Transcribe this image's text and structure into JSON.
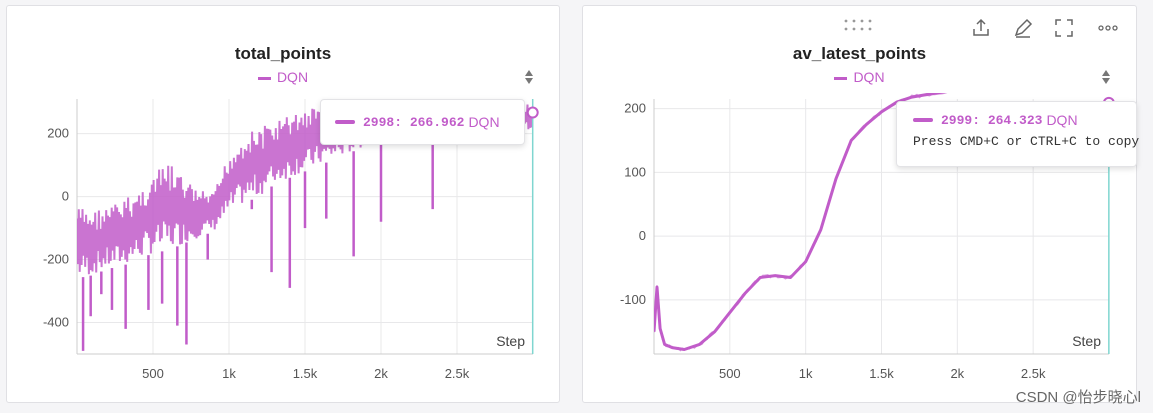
{
  "panels": [
    {
      "title": "total_points",
      "legend": "DQN",
      "tooltip": {
        "step": "2998",
        "value": "266.962",
        "series": "DQN"
      }
    },
    {
      "title": "av_latest_points",
      "legend": "DQN",
      "tooltip": {
        "step": "2999",
        "value": "264.323",
        "series": "DQN",
        "hint": "Press CMD+C or CTRL+C to copy"
      }
    }
  ],
  "watermark": "CSDN @怡步晓心l",
  "colors": {
    "series": "#c15cc9",
    "cursor": "#7fd6d0",
    "grid": "#e8e8ea"
  },
  "chart_data": [
    {
      "type": "line",
      "title": "total_points",
      "xlabel": "Step",
      "xlim": [
        0,
        3000
      ],
      "ylim": [
        -500,
        310
      ],
      "x_ticks": [
        {
          "v": 500,
          "label": "500"
        },
        {
          "v": 1000,
          "label": "1k"
        },
        {
          "v": 1500,
          "label": "1.5k"
        },
        {
          "v": 2000,
          "label": "2k"
        },
        {
          "v": 2500,
          "label": "2.5k"
        }
      ],
      "y_ticks": [
        {
          "v": 200,
          "label": "200"
        },
        {
          "v": 0,
          "label": "0"
        },
        {
          "v": -200,
          "label": "-200"
        },
        {
          "v": -400,
          "label": "-400"
        }
      ],
      "series": [
        {
          "name": "DQN",
          "color": "#c15cc9"
        }
      ],
      "band": [
        {
          "x": 0,
          "lo": -260,
          "hi": -30
        },
        {
          "x": 100,
          "lo": -250,
          "hi": -40
        },
        {
          "x": 200,
          "lo": -230,
          "hi": -30
        },
        {
          "x": 300,
          "lo": -220,
          "hi": -10
        },
        {
          "x": 400,
          "lo": -200,
          "hi": 20
        },
        {
          "x": 500,
          "lo": -180,
          "hi": 70
        },
        {
          "x": 600,
          "lo": -170,
          "hi": 110
        },
        {
          "x": 700,
          "lo": -150,
          "hi": 60
        },
        {
          "x": 800,
          "lo": -130,
          "hi": 20
        },
        {
          "x": 900,
          "lo": -110,
          "hi": 10
        },
        {
          "x": 1000,
          "lo": -60,
          "hi": 140
        },
        {
          "x": 1100,
          "lo": -20,
          "hi": 200
        },
        {
          "x": 1200,
          "lo": 0,
          "hi": 220
        },
        {
          "x": 1300,
          "lo": 40,
          "hi": 240
        },
        {
          "x": 1400,
          "lo": 60,
          "hi": 260
        },
        {
          "x": 1500,
          "lo": 80,
          "hi": 280
        },
        {
          "x": 1600,
          "lo": 100,
          "hi": 290
        },
        {
          "x": 1700,
          "lo": 120,
          "hi": 300
        },
        {
          "x": 1800,
          "lo": 140,
          "hi": 300
        },
        {
          "x": 1900,
          "lo": 160,
          "hi": 300
        },
        {
          "x": 2000,
          "lo": 170,
          "hi": 300
        },
        {
          "x": 2200,
          "lo": 180,
          "hi": 300
        },
        {
          "x": 2400,
          "lo": 190,
          "hi": 300
        },
        {
          "x": 2600,
          "lo": 200,
          "hi": 300
        },
        {
          "x": 2800,
          "lo": 200,
          "hi": 300
        },
        {
          "x": 3000,
          "lo": 210,
          "hi": 300
        }
      ],
      "spikes": [
        {
          "x": 40,
          "y": -490
        },
        {
          "x": 90,
          "y": -380
        },
        {
          "x": 160,
          "y": -310
        },
        {
          "x": 230,
          "y": -360
        },
        {
          "x": 320,
          "y": -420
        },
        {
          "x": 470,
          "y": -360
        },
        {
          "x": 560,
          "y": -340
        },
        {
          "x": 660,
          "y": -410
        },
        {
          "x": 720,
          "y": -470
        },
        {
          "x": 860,
          "y": -200
        },
        {
          "x": 1280,
          "y": -240
        },
        {
          "x": 1400,
          "y": -290
        },
        {
          "x": 1640,
          "y": -70
        },
        {
          "x": 1820,
          "y": -190
        },
        {
          "x": 2000,
          "y": -80
        },
        {
          "x": 2340,
          "y": -40
        },
        {
          "x": 1150,
          "y": -40
        },
        {
          "x": 1500,
          "y": -100
        }
      ],
      "last_point": {
        "x": 2998,
        "y": 266.962
      }
    },
    {
      "type": "line",
      "title": "av_latest_points",
      "xlabel": "Step",
      "xlim": [
        0,
        3000
      ],
      "ylim": [
        -185,
        215
      ],
      "x_ticks": [
        {
          "v": 500,
          "label": "500"
        },
        {
          "v": 1000,
          "label": "1k"
        },
        {
          "v": 1500,
          "label": "1.5k"
        },
        {
          "v": 2000,
          "label": "2k"
        },
        {
          "v": 2500,
          "label": "2.5k"
        }
      ],
      "y_ticks": [
        {
          "v": 200,
          "label": "200"
        },
        {
          "v": 100,
          "label": "100"
        },
        {
          "v": 0,
          "label": "0"
        },
        {
          "v": -100,
          "label": "-100"
        }
      ],
      "series": [
        {
          "name": "DQN",
          "color": "#c15cc9",
          "x": [
            0,
            20,
            40,
            70,
            120,
            200,
            300,
            400,
            500,
            600,
            700,
            800,
            900,
            1000,
            1100,
            1200,
            1300,
            1400,
            1500,
            1600,
            1700,
            1800,
            1900,
            2000,
            2200,
            2400,
            2600,
            2800,
            2999
          ],
          "y": [
            -150,
            -80,
            -145,
            -170,
            -175,
            -178,
            -170,
            -150,
            -120,
            -90,
            -65,
            -62,
            -65,
            -40,
            10,
            90,
            150,
            175,
            195,
            210,
            218,
            222,
            226,
            230,
            238,
            245,
            252,
            258,
            264.323
          ]
        }
      ],
      "last_point": {
        "x": 2999,
        "y": 264.323
      }
    }
  ]
}
